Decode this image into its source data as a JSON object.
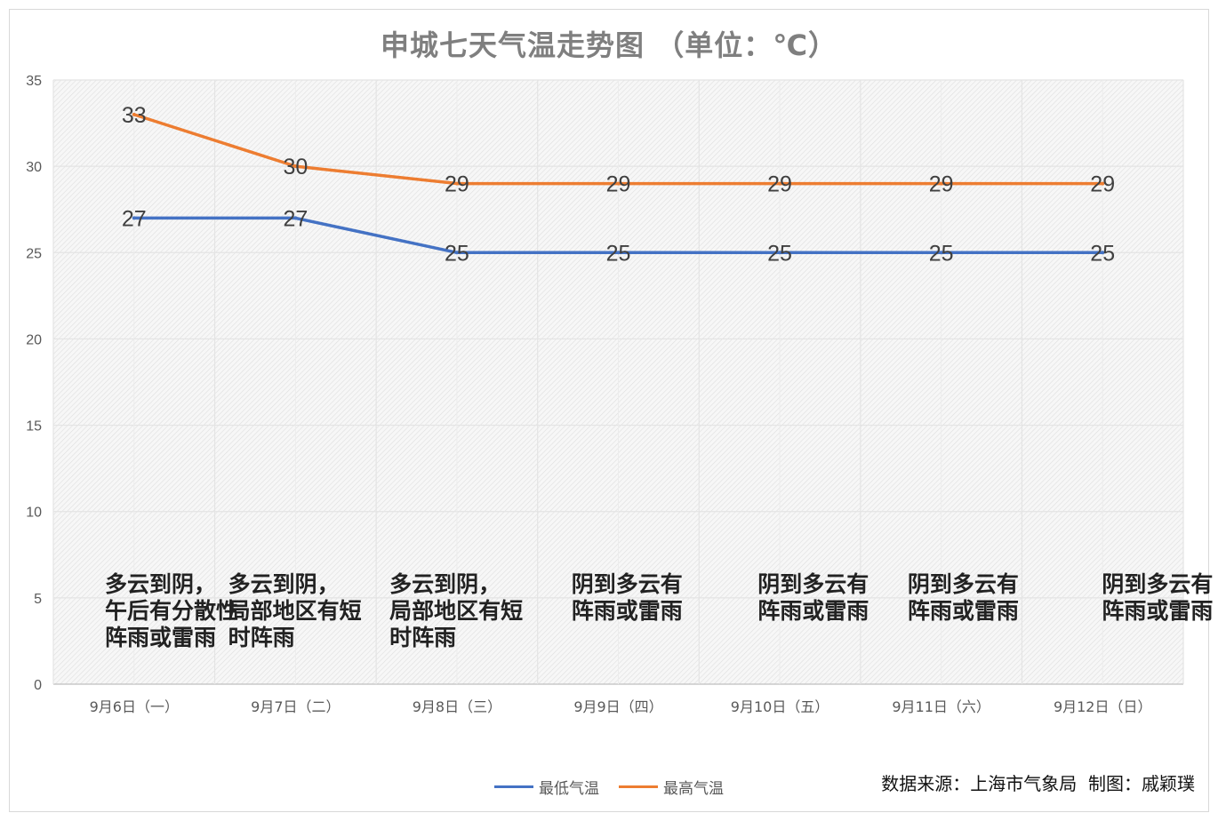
{
  "chart_data": {
    "type": "line",
    "title": "申城七天气温走势图  （单位：℃）",
    "categories": [
      "9月6日（一）",
      "9月7日（二）",
      "9月8日（三）",
      "9月9日（四）",
      "9月10日（五）",
      "9月11日（六）",
      "9月12日（日）"
    ],
    "series": [
      {
        "name": "最低气温",
        "values": [
          27,
          27,
          25,
          25,
          25,
          25,
          25
        ],
        "color": "#4472c4"
      },
      {
        "name": "最高气温",
        "values": [
          33,
          30,
          29,
          29,
          29,
          29,
          29
        ],
        "color": "#ed7d31"
      }
    ],
    "ylim": [
      0,
      35
    ],
    "yticks": [
      0,
      5,
      10,
      15,
      20,
      25,
      30,
      35
    ],
    "grid": true,
    "legend": "bottom",
    "annotations": [
      "多云到阴，\n午后有分散性\n阵雨或雷雨",
      "多云到阴，\n局部地区有短\n时阵雨",
      "多云到阴，\n局部地区有短\n时阵雨",
      "阴到多云有\n阵雨或雷雨",
      "阴到多云有\n阵雨或雷雨",
      "阴到多云有\n阵雨或雷雨",
      "阴到多云有\n阵雨或雷雨"
    ]
  },
  "credit": "数据来源：上海市气象局  制图：戚颖璞"
}
